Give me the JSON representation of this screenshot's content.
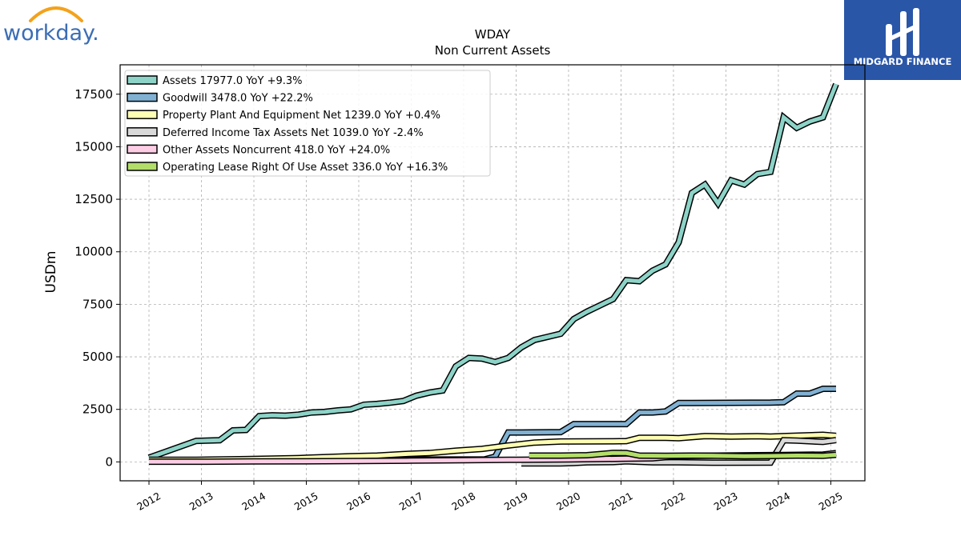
{
  "brand": {
    "left_logo_text": "workday.",
    "right_logo_text": "MIDGARD FINANCE",
    "right_logo_color": "#2a56a8",
    "left_logo_color": "#3b6db5",
    "left_logo_arc_color": "#f3a21c"
  },
  "chart_data": {
    "type": "line",
    "title": "WDAY",
    "subtitle": "Non Current  Assets",
    "ylabel": "USDm",
    "xlabel": "",
    "xlim": [
      2011.45,
      2025.65
    ],
    "ylim": [
      -900,
      18900
    ],
    "yticks": [
      0,
      2500,
      5000,
      7500,
      10000,
      12500,
      15000,
      17500
    ],
    "ytick_labels": [
      "0",
      "2500",
      "5000",
      "7500",
      "10000",
      "12500",
      "15000",
      "17500"
    ],
    "xticks": [
      2012,
      2013,
      2014,
      2015,
      2016,
      2017,
      2018,
      2019,
      2020,
      2021,
      2022,
      2023,
      2024,
      2025
    ],
    "xtick_labels": [
      "2012",
      "2013",
      "2014",
      "2015",
      "2016",
      "2017",
      "2018",
      "2019",
      "2020",
      "2021",
      "2022",
      "2023",
      "2024",
      "2025"
    ],
    "grid": true,
    "legend_position": "top-left",
    "series": [
      {
        "name": "Assets  17977.0 YoY +9.3%",
        "color": "#8dd3c7",
        "points": [
          [
            2012.0,
            200
          ],
          [
            2012.9,
            1000
          ],
          [
            2013.35,
            1030
          ],
          [
            2013.6,
            1500
          ],
          [
            2013.85,
            1520
          ],
          [
            2014.1,
            2180
          ],
          [
            2014.35,
            2220
          ],
          [
            2014.6,
            2200
          ],
          [
            2014.85,
            2250
          ],
          [
            2015.1,
            2350
          ],
          [
            2015.35,
            2380
          ],
          [
            2015.6,
            2450
          ],
          [
            2015.85,
            2500
          ],
          [
            2016.1,
            2720
          ],
          [
            2016.35,
            2760
          ],
          [
            2016.6,
            2820
          ],
          [
            2016.85,
            2900
          ],
          [
            2017.1,
            3150
          ],
          [
            2017.35,
            3300
          ],
          [
            2017.6,
            3400
          ],
          [
            2017.85,
            4550
          ],
          [
            2018.1,
            4950
          ],
          [
            2018.35,
            4920
          ],
          [
            2018.6,
            4750
          ],
          [
            2018.85,
            4950
          ],
          [
            2019.1,
            5450
          ],
          [
            2019.35,
            5800
          ],
          [
            2019.6,
            5950
          ],
          [
            2019.85,
            6100
          ],
          [
            2020.1,
            6800
          ],
          [
            2020.35,
            7150
          ],
          [
            2020.6,
            7450
          ],
          [
            2020.85,
            7750
          ],
          [
            2021.1,
            8650
          ],
          [
            2021.35,
            8600
          ],
          [
            2021.6,
            9100
          ],
          [
            2021.85,
            9400
          ],
          [
            2022.1,
            10450
          ],
          [
            2022.35,
            12800
          ],
          [
            2022.6,
            13200
          ],
          [
            2022.85,
            12300
          ],
          [
            2023.1,
            13400
          ],
          [
            2023.35,
            13200
          ],
          [
            2023.6,
            13700
          ],
          [
            2023.85,
            13800
          ],
          [
            2024.1,
            16400
          ],
          [
            2024.35,
            15900
          ],
          [
            2024.6,
            16200
          ],
          [
            2024.85,
            16400
          ],
          [
            2025.1,
            17977
          ]
        ]
      },
      {
        "name": "Goodwill  3478.0 YoY +22.2%",
        "color": "#80b1d3",
        "points": [
          [
            2012.0,
            80
          ],
          [
            2018.4,
            120
          ],
          [
            2018.6,
            250
          ],
          [
            2018.85,
            1400
          ],
          [
            2019.1,
            1400
          ],
          [
            2019.85,
            1420
          ],
          [
            2020.1,
            1800
          ],
          [
            2020.35,
            1800
          ],
          [
            2020.85,
            1800
          ],
          [
            2021.1,
            1800
          ],
          [
            2021.35,
            2350
          ],
          [
            2021.6,
            2350
          ],
          [
            2021.85,
            2400
          ],
          [
            2022.1,
            2800
          ],
          [
            2022.35,
            2800
          ],
          [
            2023.85,
            2820
          ],
          [
            2024.1,
            2840
          ],
          [
            2024.35,
            3250
          ],
          [
            2024.6,
            3250
          ],
          [
            2024.85,
            3478
          ],
          [
            2025.1,
            3478
          ]
        ]
      },
      {
        "name": "Property Plant And Equipment Net  1239.0 YoY +0.4%",
        "color": "#ffffb3",
        "points": [
          [
            2012.0,
            100
          ],
          [
            2012.9,
            100
          ],
          [
            2013.85,
            130
          ],
          [
            2014.85,
            180
          ],
          [
            2015.85,
            270
          ],
          [
            2016.35,
            300
          ],
          [
            2016.85,
            370
          ],
          [
            2017.35,
            420
          ],
          [
            2017.85,
            530
          ],
          [
            2018.35,
            620
          ],
          [
            2018.85,
            780
          ],
          [
            2019.35,
            920
          ],
          [
            2019.85,
            970
          ],
          [
            2020.85,
            980
          ],
          [
            2021.1,
            990
          ],
          [
            2021.35,
            1150
          ],
          [
            2021.85,
            1150
          ],
          [
            2022.1,
            1130
          ],
          [
            2022.6,
            1230
          ],
          [
            2023.1,
            1200
          ],
          [
            2023.6,
            1220
          ],
          [
            2023.85,
            1200
          ],
          [
            2024.1,
            1230
          ],
          [
            2024.85,
            1290
          ],
          [
            2025.1,
            1239
          ]
        ]
      },
      {
        "name": "Deferred Income Tax Assets Net  1039.0 YoY -2.4%",
        "color": "#d9d9d9",
        "points": [
          [
            2019.1,
            -70
          ],
          [
            2019.85,
            -70
          ],
          [
            2020.1,
            -50
          ],
          [
            2020.35,
            -20
          ],
          [
            2020.85,
            -10
          ],
          [
            2021.1,
            30
          ],
          [
            2021.6,
            -20
          ],
          [
            2022.1,
            -20
          ],
          [
            2022.85,
            -40
          ],
          [
            2023.85,
            -30
          ],
          [
            2024.1,
            1030
          ],
          [
            2024.35,
            1010
          ],
          [
            2024.85,
            950
          ],
          [
            2025.1,
            1039
          ]
        ]
      },
      {
        "name": "Other Assets Noncurrent  418.0 YoY +24.0%",
        "color": "#fccde5",
        "points": [
          [
            2012.0,
            10
          ],
          [
            2013.1,
            10
          ],
          [
            2014.0,
            20
          ],
          [
            2015.0,
            30
          ],
          [
            2016.0,
            40
          ],
          [
            2017.0,
            60
          ],
          [
            2018.0,
            80
          ],
          [
            2019.0,
            100
          ],
          [
            2020.0,
            120
          ],
          [
            2021.0,
            150
          ],
          [
            2021.6,
            170
          ],
          [
            2022.1,
            280
          ],
          [
            2022.85,
            300
          ],
          [
            2023.6,
            320
          ],
          [
            2024.1,
            330
          ],
          [
            2024.85,
            350
          ],
          [
            2025.1,
            418
          ]
        ]
      },
      {
        "name": "Operating Lease Right Of Use Asset  336.0 YoY +16.3%",
        "color": "#b3de69",
        "points": [
          [
            2019.25,
            300
          ],
          [
            2019.85,
            300
          ],
          [
            2020.35,
            320
          ],
          [
            2020.6,
            370
          ],
          [
            2020.85,
            430
          ],
          [
            2021.1,
            420
          ],
          [
            2021.35,
            300
          ],
          [
            2021.85,
            290
          ],
          [
            2022.35,
            300
          ],
          [
            2022.85,
            290
          ],
          [
            2023.35,
            270
          ],
          [
            2023.85,
            280
          ],
          [
            2024.35,
            300
          ],
          [
            2024.85,
            290
          ],
          [
            2025.1,
            336
          ]
        ]
      }
    ]
  }
}
